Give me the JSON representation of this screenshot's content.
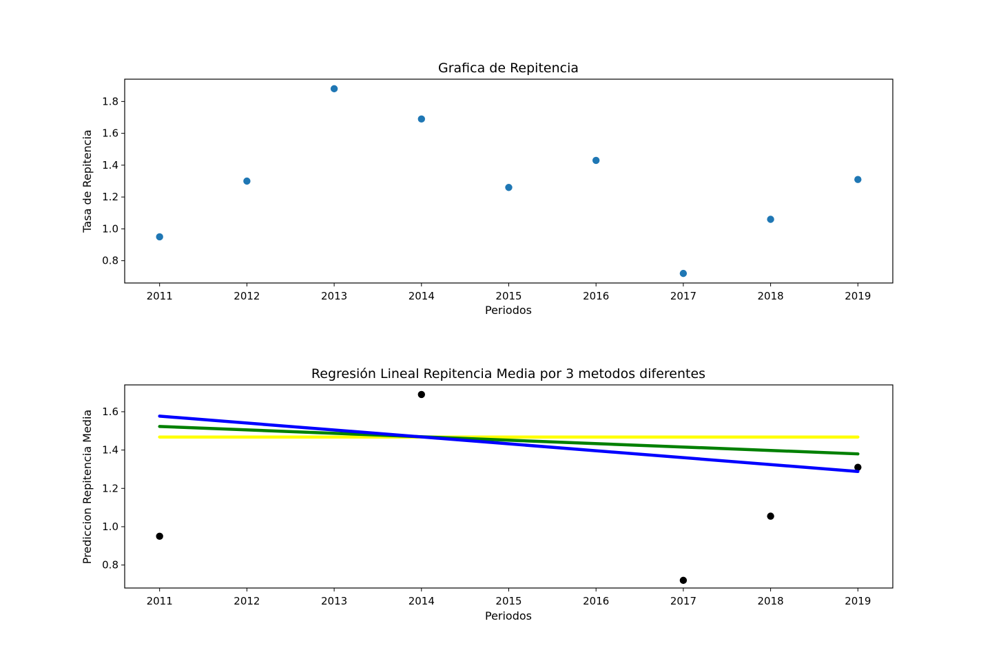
{
  "chart_data": [
    {
      "type": "scatter",
      "title": "Grafica de Repitencia",
      "xlabel": "Periodos",
      "ylabel": "Tasa de Repitencia",
      "xlim": [
        2010.6,
        2019.4
      ],
      "ylim": [
        0.66,
        1.94
      ],
      "xticks": [
        2011,
        2012,
        2013,
        2014,
        2015,
        2016,
        2017,
        2018,
        2019
      ],
      "yticks": [
        0.8,
        1.0,
        1.2,
        1.4,
        1.6,
        1.8
      ],
      "grid": false,
      "series": [
        {
          "kind": "scatter",
          "color": "#1f77b4",
          "x": [
            2011,
            2012,
            2013,
            2014,
            2015,
            2016,
            2017,
            2018,
            2019
          ],
          "y": [
            0.95,
            1.3,
            1.88,
            1.69,
            1.26,
            1.43,
            0.72,
            1.06,
            1.31
          ]
        }
      ]
    },
    {
      "type": "scatter",
      "title": "Regresión Lineal Repitencia Media por 3 metodos diferentes",
      "xlabel": "Periodos",
      "ylabel": "Prediccion Repitencia Media",
      "xlim": [
        2010.6,
        2019.4
      ],
      "ylim": [
        0.68,
        1.74
      ],
      "xticks": [
        2011,
        2012,
        2013,
        2014,
        2015,
        2016,
        2017,
        2018,
        2019
      ],
      "yticks": [
        0.8,
        1.0,
        1.2,
        1.4,
        1.6
      ],
      "grid": false,
      "series": [
        {
          "kind": "scatter",
          "color": "#000000",
          "x": [
            2011,
            2014,
            2017,
            2018,
            2019
          ],
          "y": [
            0.95,
            1.69,
            0.72,
            1.055,
            1.31
          ]
        },
        {
          "kind": "line",
          "color": "#ffff00",
          "x": [
            2011,
            2019
          ],
          "y": [
            1.468,
            1.468
          ]
        },
        {
          "kind": "line",
          "color": "#008000",
          "x": [
            2011,
            2019
          ],
          "y": [
            1.523,
            1.38
          ]
        },
        {
          "kind": "line",
          "color": "#0000ff",
          "x": [
            2011,
            2019
          ],
          "y": [
            1.577,
            1.288
          ]
        }
      ]
    }
  ]
}
